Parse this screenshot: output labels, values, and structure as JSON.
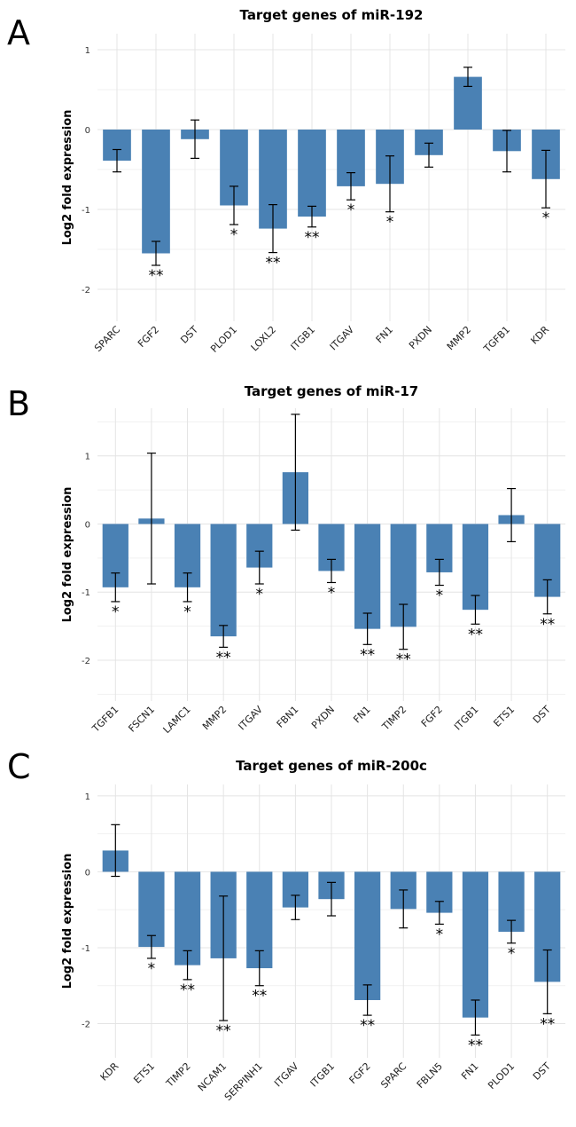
{
  "colors": {
    "bar": "#4a81b4",
    "grid": "#e4e4e4",
    "background": "#ffffff"
  },
  "chart_data": [
    {
      "panel": "A",
      "type": "bar",
      "title": "Target genes of miR-192",
      "xlabel": "",
      "ylabel": "Log2 fold expression",
      "ylim": [
        -2.4,
        1.2
      ],
      "yticks": [
        1,
        0,
        -1,
        -2
      ],
      "grid": true,
      "categories": [
        "SPARC",
        "FGF2",
        "DST",
        "PLOD1",
        "LOXL2",
        "ITGB1",
        "ITGAV",
        "FN1",
        "PXDN",
        "MMP2",
        "TGFB1",
        "KDR"
      ],
      "values": [
        -0.39,
        -1.55,
        -0.12,
        -0.95,
        -1.24,
        -1.09,
        -0.71,
        -0.68,
        -0.32,
        0.66,
        -0.27,
        -0.62
      ],
      "errors": [
        0.14,
        0.15,
        0.24,
        0.24,
        0.3,
        0.13,
        0.17,
        0.35,
        0.15,
        0.12,
        0.26,
        0.36
      ],
      "significance": [
        "",
        "**",
        "",
        "*",
        "**",
        "**",
        "*",
        "*",
        "",
        "",
        "",
        "*"
      ]
    },
    {
      "panel": "B",
      "type": "bar",
      "title": "Target genes of miR-17",
      "xlabel": "",
      "ylabel": "Log2 fold expression",
      "ylim": [
        -2.6,
        1.7
      ],
      "yticks": [
        1,
        0,
        -1,
        -2
      ],
      "grid": true,
      "categories": [
        "TGFB1",
        "FSCN1",
        "LAMC1",
        "MMP2",
        "ITGAV",
        "FBN1",
        "PXDN",
        "FN1",
        "TIMP2",
        "FGF2",
        "ITGB1",
        "ETS1",
        "DST"
      ],
      "values": [
        -0.93,
        0.08,
        -0.93,
        -1.65,
        -0.64,
        0.76,
        -0.69,
        -1.54,
        -1.51,
        -0.71,
        -1.26,
        0.13,
        -1.07
      ],
      "errors": [
        0.21,
        0.96,
        0.21,
        0.16,
        0.24,
        0.85,
        0.17,
        0.23,
        0.33,
        0.19,
        0.21,
        0.39,
        0.25
      ],
      "significance": [
        "*",
        "",
        "*",
        "**",
        "*",
        "",
        "*",
        "**",
        "**",
        "*",
        "**",
        "",
        "**"
      ]
    },
    {
      "panel": "C",
      "type": "bar",
      "title": "Target genes of miR-200c",
      "xlabel": "",
      "ylabel": "Log2 fold expression",
      "ylim": [
        -2.45,
        1.15
      ],
      "yticks": [
        1,
        0,
        -1,
        -2
      ],
      "grid": true,
      "categories": [
        "KDR",
        "ETS1",
        "TIMP2",
        "NCAM1",
        "SERPINH1",
        "ITGAV",
        "ITGB1",
        "FGF2",
        "SPARC",
        "FBLN5",
        "FN1",
        "PLOD1",
        "DST"
      ],
      "values": [
        0.28,
        -0.99,
        -1.23,
        -1.14,
        -1.27,
        -0.47,
        -0.36,
        -1.69,
        -0.49,
        -0.54,
        -1.92,
        -0.79,
        -1.45
      ],
      "errors": [
        0.34,
        0.15,
        0.19,
        0.82,
        0.23,
        0.16,
        0.22,
        0.2,
        0.25,
        0.15,
        0.23,
        0.15,
        0.42
      ],
      "significance": [
        "",
        "*",
        "**",
        "**",
        "**",
        "",
        "",
        "**",
        "",
        "*",
        "**",
        "*",
        "**"
      ]
    }
  ]
}
